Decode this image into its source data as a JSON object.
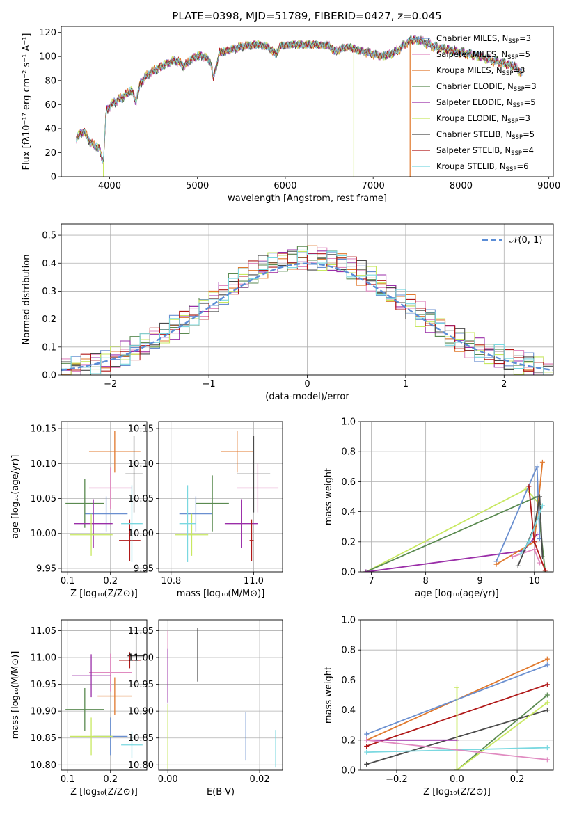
{
  "colors": {
    "chabrier_miles": "#6a8fd0",
    "salpeter_miles": "#e08ac0",
    "kroupa_miles": "#e0782c",
    "chabrier_elodie": "#5a8a50",
    "salpeter_elodie": "#9a2ea8",
    "kroupa_elodie": "#c8e860",
    "chabrier_stelib": "#4a4a4a",
    "salpeter_stelib": "#b01818",
    "kroupa_stelib": "#7ad8e0",
    "normal_curve": "#5b8dd6"
  },
  "chart_data": [
    {
      "id": "spectrum",
      "type": "line",
      "title": "PLATE=0398, MJD=51789, FIBERID=0427, z=0.045",
      "xlabel": "wavelength [Angstrom, rest frame]",
      "ylabel": "Flux [fλ10⁻¹⁷ erg cm⁻² s⁻¹ A⁻¹]",
      "xlim": [
        3450,
        9050
      ],
      "ylim": [
        0,
        125
      ],
      "xticks": [
        4000,
        5000,
        6000,
        7000,
        8000,
        9000
      ],
      "yticks": [
        0,
        20,
        40,
        60,
        80,
        100,
        120
      ],
      "grid": false,
      "legend_position": "top-right",
      "legend": [
        {
          "label": "Chabrier MILES, N",
          "sub": "SSP",
          "suffix": "=3",
          "color_key": "chabrier_miles"
        },
        {
          "label": "Salpeter MILES, N",
          "sub": "SSP",
          "suffix": "=5",
          "color_key": "salpeter_miles"
        },
        {
          "label": "Kroupa MILES, N",
          "sub": "SSP",
          "suffix": "=3",
          "color_key": "kroupa_miles"
        },
        {
          "label": "Chabrier ELODIE, N",
          "sub": "SSP",
          "suffix": "=3",
          "color_key": "chabrier_elodie"
        },
        {
          "label": "Salpeter ELODIE, N",
          "sub": "SSP",
          "suffix": "=5",
          "color_key": "salpeter_elodie"
        },
        {
          "label": "Kroupa ELODIE, N",
          "sub": "SSP",
          "suffix": "=3",
          "color_key": "kroupa_elodie"
        },
        {
          "label": "Chabrier STELIB, N",
          "sub": "SSP",
          "suffix": "=5",
          "color_key": "chabrier_stelib"
        },
        {
          "label": "Salpeter STELIB, N",
          "sub": "SSP",
          "suffix": "=4",
          "color_key": "salpeter_stelib"
        },
        {
          "label": "Kroupa STELIB, N",
          "sub": "SSP",
          "suffix": "=6",
          "color_key": "kroupa_stelib"
        }
      ],
      "continuum": [
        [
          3620,
          32
        ],
        [
          3700,
          38
        ],
        [
          3800,
          27
        ],
        [
          3880,
          24
        ],
        [
          3930,
          12
        ],
        [
          3960,
          55
        ],
        [
          4050,
          62
        ],
        [
          4150,
          66
        ],
        [
          4250,
          72
        ],
        [
          4300,
          62
        ],
        [
          4350,
          78
        ],
        [
          4450,
          86
        ],
        [
          4550,
          90
        ],
        [
          4650,
          94
        ],
        [
          4750,
          97
        ],
        [
          4850,
          92
        ],
        [
          4950,
          99
        ],
        [
          5050,
          101
        ],
        [
          5150,
          96
        ],
        [
          5180,
          82
        ],
        [
          5250,
          103
        ],
        [
          5350,
          105
        ],
        [
          5450,
          107
        ],
        [
          5550,
          109
        ],
        [
          5700,
          110
        ],
        [
          5800,
          108
        ],
        [
          5890,
          102
        ],
        [
          5950,
          109
        ],
        [
          6100,
          110
        ],
        [
          6300,
          110
        ],
        [
          6500,
          109
        ],
        [
          6563,
          104
        ],
        [
          6700,
          108
        ],
        [
          6900,
          104
        ],
        [
          7100,
          100
        ],
        [
          7200,
          102
        ],
        [
          7300,
          106
        ],
        [
          7350,
          110
        ],
        [
          7450,
          114
        ],
        [
          7550,
          113
        ],
        [
          7700,
          108
        ],
        [
          7900,
          105
        ],
        [
          8100,
          102
        ],
        [
          8300,
          98
        ],
        [
          8500,
          94
        ],
        [
          8600,
          92
        ],
        [
          8700,
          86
        ]
      ],
      "dropouts": [
        {
          "x": 3930,
          "color_key": "kroupa_elodie"
        },
        {
          "x": 6780,
          "color_key": "kroupa_elodie"
        },
        {
          "x": 7420,
          "color_key": "kroupa_miles"
        }
      ]
    },
    {
      "id": "residuals",
      "type": "histogram",
      "xlabel": "(data-model)/error",
      "ylabel": "Normed distribution",
      "xlim": [
        -2.5,
        2.5
      ],
      "ylim": [
        0,
        0.54
      ],
      "xticks": [
        -2,
        -1,
        0,
        1,
        2
      ],
      "yticks": [
        0.0,
        0.1,
        0.2,
        0.3,
        0.4,
        0.5
      ],
      "grid": true,
      "legend_position": "top-right",
      "legend_label": "𝒩(0, 1)",
      "bin_width": 0.1,
      "x_start": -2.5
    },
    {
      "id": "age_vs_z",
      "type": "errorbar",
      "xlabel": "Z [log₁₀(Z/Z⊙)]",
      "ylabel": "age  [log₁₀(age/yr)]",
      "xlim": [
        0.085,
        0.285
      ],
      "ylim": [
        9.945,
        10.16
      ],
      "xticks": [
        0.1,
        0.2
      ],
      "yticks": [
        9.95,
        10.0,
        10.05,
        10.1,
        10.15
      ],
      "grid": true,
      "points": [
        {
          "k": "chabrier_miles",
          "x": 0.19,
          "xe": 0.05,
          "y": 10.028,
          "ye": 0.025
        },
        {
          "k": "salpeter_miles",
          "x": 0.2,
          "xe": 0.05,
          "y": 10.065,
          "ye": 0.03
        },
        {
          "k": "kroupa_miles",
          "x": 0.21,
          "xe": 0.06,
          "y": 10.117,
          "ye": 0.03
        },
        {
          "k": "chabrier_elodie",
          "x": 0.14,
          "xe": 0.045,
          "y": 10.043,
          "ye": 0.035
        },
        {
          "k": "salpeter_elodie",
          "x": 0.16,
          "xe": 0.045,
          "y": 10.014,
          "ye": 0.035
        },
        {
          "k": "kroupa_elodie",
          "x": 0.155,
          "xe": 0.05,
          "y": 9.998,
          "ye": 0.03
        },
        {
          "k": "chabrier_stelib",
          "x": 0.255,
          "xe": 0.02,
          "y": 10.085,
          "ye": 0.055
        },
        {
          "k": "salpeter_stelib",
          "x": 0.245,
          "xe": 0.025,
          "y": 9.99,
          "ye": 0.03
        },
        {
          "k": "kroupa_stelib",
          "x": 0.25,
          "xe": 0.025,
          "y": 10.014,
          "ye": 0.055
        }
      ]
    },
    {
      "id": "age_vs_mass",
      "type": "errorbar",
      "xlabel": "mass [log₁₀(M/M⊙)]",
      "ylabel": "",
      "xlim": [
        10.77,
        11.07
      ],
      "ylim": [
        9.945,
        10.16
      ],
      "xticks": [
        10.8,
        11.0
      ],
      "yticks": [
        9.95,
        10.0,
        10.05,
        10.1,
        10.15
      ],
      "grid": true,
      "points": [
        {
          "k": "chabrier_miles",
          "x": 10.86,
          "xe": 0.04,
          "y": 10.028,
          "ye": 0.025
        },
        {
          "k": "salpeter_miles",
          "x": 11.01,
          "xe": 0.05,
          "y": 10.065,
          "ye": 0.035
        },
        {
          "k": "kroupa_miles",
          "x": 10.96,
          "xe": 0.04,
          "y": 10.117,
          "ye": 0.03
        },
        {
          "k": "chabrier_elodie",
          "x": 10.9,
          "xe": 0.04,
          "y": 10.043,
          "ye": 0.04
        },
        {
          "k": "salpeter_elodie",
          "x": 10.97,
          "xe": 0.04,
          "y": 10.014,
          "ye": 0.035
        },
        {
          "k": "kroupa_elodie",
          "x": 10.85,
          "xe": 0.04,
          "y": 9.998,
          "ye": 0.03
        },
        {
          "k": "chabrier_stelib",
          "x": 11.0,
          "xe": 0.04,
          "y": 10.085,
          "ye": 0.055
        },
        {
          "k": "salpeter_stelib",
          "x": 10.995,
          "xe": 0.005,
          "y": 9.99,
          "ye": 0.03
        },
        {
          "k": "kroupa_stelib",
          "x": 10.84,
          "xe": 0.02,
          "y": 10.014,
          "ye": 0.055
        }
      ]
    },
    {
      "id": "mass_weight_vs_age",
      "type": "line",
      "xlabel": "age  [log₁₀(age/yr)]",
      "ylabel": "mass weight",
      "xlim": [
        6.8,
        10.35
      ],
      "ylim": [
        0,
        1.0
      ],
      "xticks": [
        7,
        8,
        9,
        10
      ],
      "yticks": [
        0.0,
        0.2,
        0.4,
        0.6,
        0.8,
        1.0
      ],
      "grid": true,
      "series": [
        {
          "k": "kroupa_elodie",
          "pts": [
            [
              6.9,
              0.0
            ],
            [
              9.85,
              0.55
            ],
            [
              10.1,
              0.45
            ]
          ]
        },
        {
          "k": "chabrier_elodie",
          "pts": [
            [
              6.9,
              0.0
            ],
            [
              10.05,
              0.5
            ],
            [
              10.2,
              0.0
            ]
          ]
        },
        {
          "k": "salpeter_elodie",
          "pts": [
            [
              6.9,
              0.0
            ],
            [
              9.8,
              0.14
            ],
            [
              10.05,
              0.25
            ]
          ]
        },
        {
          "k": "chabrier_miles",
          "pts": [
            [
              9.3,
              0.07
            ],
            [
              10.05,
              0.7
            ],
            [
              10.1,
              0.22
            ]
          ]
        },
        {
          "k": "kroupa_miles",
          "pts": [
            [
              9.3,
              0.05
            ],
            [
              10.0,
              0.2
            ],
            [
              10.15,
              0.73
            ]
          ]
        },
        {
          "k": "salpeter_miles",
          "pts": [
            [
              9.6,
              0.1
            ],
            [
              10.0,
              0.15
            ],
            [
              10.1,
              0.06
            ]
          ]
        },
        {
          "k": "chabrier_stelib",
          "pts": [
            [
              9.7,
              0.04
            ],
            [
              10.0,
              0.3
            ],
            [
              10.1,
              0.5
            ],
            [
              10.15,
              0.1
            ]
          ]
        },
        {
          "k": "salpeter_stelib",
          "pts": [
            [
              9.9,
              0.57
            ],
            [
              10.0,
              0.2
            ],
            [
              10.2,
              0.01
            ]
          ]
        },
        {
          "k": "kroupa_stelib",
          "pts": [
            [
              9.75,
              0.12
            ],
            [
              9.9,
              0.2
            ],
            [
              10.15,
              0.44
            ]
          ]
        }
      ]
    },
    {
      "id": "mass_vs_z",
      "type": "errorbar",
      "xlabel": "Z [log₁₀(Z/Z⊙)]",
      "ylabel": "mass [log₁₀(M/M⊙)]",
      "xlim": [
        0.085,
        0.285
      ],
      "ylim": [
        10.79,
        11.07
      ],
      "xticks": [
        0.1,
        0.2
      ],
      "yticks": [
        10.8,
        10.85,
        10.9,
        10.95,
        11.0,
        11.05
      ],
      "grid": true,
      "points": [
        {
          "k": "chabrier_miles",
          "x": 0.2,
          "xe": 0.04,
          "y": 10.853,
          "ye": 0.035
        },
        {
          "k": "salpeter_miles",
          "x": 0.2,
          "xe": 0.05,
          "y": 10.972,
          "ye": 0.035
        },
        {
          "k": "kroupa_miles",
          "x": 0.21,
          "xe": 0.04,
          "y": 10.928,
          "ye": 0.035
        },
        {
          "k": "chabrier_elodie",
          "x": 0.14,
          "xe": 0.045,
          "y": 10.903,
          "ye": 0.04
        },
        {
          "k": "salpeter_elodie",
          "x": 0.155,
          "xe": 0.045,
          "y": 10.966,
          "ye": 0.04
        },
        {
          "k": "kroupa_elodie",
          "x": 0.155,
          "xe": 0.05,
          "y": 10.853,
          "ye": 0.035
        },
        {
          "k": "chabrier_stelib",
          "x": 0.26,
          "xe": 0.02,
          "y": 11.003,
          "ye": 0.05
        },
        {
          "k": "salpeter_stelib",
          "x": 0.245,
          "xe": 0.025,
          "y": 10.995,
          "ye": 0.015
        },
        {
          "k": "kroupa_stelib",
          "x": 0.25,
          "xe": 0.025,
          "y": 10.837,
          "ye": 0.025
        }
      ]
    },
    {
      "id": "mass_vs_ebv",
      "type": "errorbar",
      "xlabel": "E(B-V)",
      "ylabel": "",
      "xlim": [
        -0.002,
        0.025
      ],
      "ylim": [
        10.79,
        11.07
      ],
      "xticks": [
        0.0,
        0.02
      ],
      "yticks": [
        10.8,
        10.85,
        10.9,
        10.95,
        11.0,
        11.05
      ],
      "grid": true,
      "points": [
        {
          "k": "chabrier_miles",
          "x": 0.017,
          "xe": 0,
          "y": 10.853,
          "ye": 0.045
        },
        {
          "k": "salpeter_miles",
          "x": 0.0,
          "xe": 0,
          "y": 10.99,
          "ye": 0.06
        },
        {
          "k": "salpeter_elodie",
          "x": 0.0,
          "xe": 0,
          "y": 10.966,
          "ye": 0.05
        },
        {
          "k": "kroupa_elodie",
          "x": 0.0,
          "xe": 0,
          "y": 10.853,
          "ye": 0.06
        },
        {
          "k": "chabrier_stelib",
          "x": 0.0065,
          "xe": 0,
          "y": 11.005,
          "ye": 0.05
        },
        {
          "k": "kroupa_stelib",
          "x": 0.0235,
          "xe": 0,
          "y": 10.83,
          "ye": 0.035
        }
      ]
    },
    {
      "id": "mass_weight_vs_z",
      "type": "line",
      "xlabel": "Z [log₁₀(Z/Z⊙)]",
      "ylabel": "mass weight",
      "xlim": [
        -0.32,
        0.32
      ],
      "ylim": [
        0,
        1.0
      ],
      "xticks": [
        -0.2,
        0.0,
        0.2
      ],
      "yticks": [
        0.0,
        0.2,
        0.4,
        0.6,
        0.8,
        1.0
      ],
      "grid": true,
      "series": [
        {
          "k": "kroupa_miles",
          "pts": [
            [
              -0.3,
              0.2
            ],
            [
              0.3,
              0.74
            ]
          ]
        },
        {
          "k": "chabrier_miles",
          "pts": [
            [
              -0.3,
              0.24
            ],
            [
              0.3,
              0.7
            ]
          ]
        },
        {
          "k": "salpeter_stelib",
          "pts": [
            [
              -0.3,
              0.16
            ],
            [
              0.3,
              0.57
            ]
          ]
        },
        {
          "k": "chabrier_elodie",
          "pts": [
            [
              0.0,
              0.0
            ],
            [
              0.3,
              0.5
            ]
          ]
        },
        {
          "k": "chabrier_stelib",
          "pts": [
            [
              -0.3,
              0.04
            ],
            [
              0.3,
              0.4
            ]
          ]
        },
        {
          "k": "kroupa_elodie",
          "pts": [
            [
              0.0,
              0.55
            ],
            [
              0.0,
              0.0
            ],
            [
              0.3,
              0.45
            ]
          ]
        },
        {
          "k": "salpeter_elodie",
          "pts": [
            [
              -0.3,
              0.2
            ],
            [
              0.0,
              0.2
            ]
          ]
        },
        {
          "k": "kroupa_stelib",
          "pts": [
            [
              -0.3,
              0.12
            ],
            [
              0.3,
              0.15
            ]
          ]
        },
        {
          "k": "salpeter_miles",
          "pts": [
            [
              -0.3,
              0.2
            ],
            [
              0.3,
              0.07
            ]
          ]
        }
      ]
    }
  ]
}
